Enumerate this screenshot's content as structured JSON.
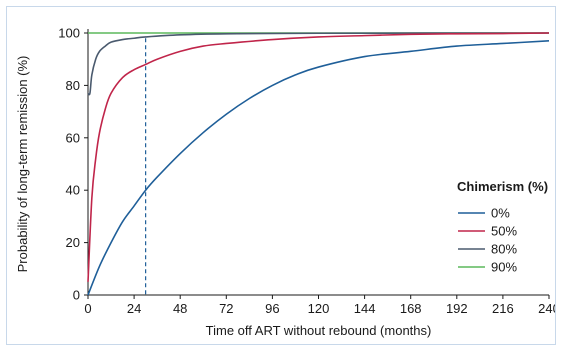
{
  "chart_data": {
    "type": "line",
    "xlabel": "Time off ART without rebound (months)",
    "ylabel": "Probability of long-term remission (%)",
    "xlim": [
      0,
      240
    ],
    "ylim": [
      0,
      100
    ],
    "xticks": [
      0,
      24,
      48,
      72,
      96,
      120,
      144,
      168,
      192,
      216,
      240
    ],
    "yticks": [
      0,
      20,
      40,
      60,
      80,
      100
    ],
    "grid": false,
    "legend": {
      "title": "Chimerism (%)",
      "position": "right"
    },
    "reference_line": {
      "x": 30,
      "style": "dashed"
    },
    "series": [
      {
        "name": "0%",
        "color": "#1f5f99",
        "x": [
          0,
          6,
          12,
          18,
          24,
          30,
          36,
          48,
          60,
          72,
          84,
          96,
          108,
          120,
          144,
          168,
          192,
          216,
          240
        ],
        "y": [
          0,
          11,
          20,
          28,
          34,
          40,
          45,
          54,
          62,
          69,
          75,
          80,
          84,
          87,
          91,
          93,
          95,
          96,
          97
        ]
      },
      {
        "name": "50%",
        "color": "#c0254a",
        "x": [
          0,
          2,
          4,
          6,
          9,
          12,
          18,
          24,
          30,
          36,
          48,
          60,
          72,
          96,
          120,
          144,
          168,
          192,
          216,
          240
        ],
        "y": [
          5,
          37,
          52,
          62,
          71,
          77,
          83,
          86,
          88,
          90,
          93,
          95,
          96,
          97.5,
          98.5,
          99,
          99.5,
          99.7,
          99.8,
          100
        ]
      },
      {
        "name": "80%",
        "color": "#4a5a6e",
        "x": [
          0,
          1,
          2,
          4,
          6,
          9,
          12,
          18,
          24,
          30,
          48,
          72,
          120,
          240
        ],
        "y": [
          77,
          77,
          84,
          90,
          93,
          95,
          96.5,
          97.5,
          98,
          98.5,
          99.3,
          99.7,
          99.9,
          100
        ]
      },
      {
        "name": "90%",
        "color": "#5cb85c",
        "x": [
          0,
          240
        ],
        "y": [
          100,
          100
        ]
      }
    ]
  }
}
